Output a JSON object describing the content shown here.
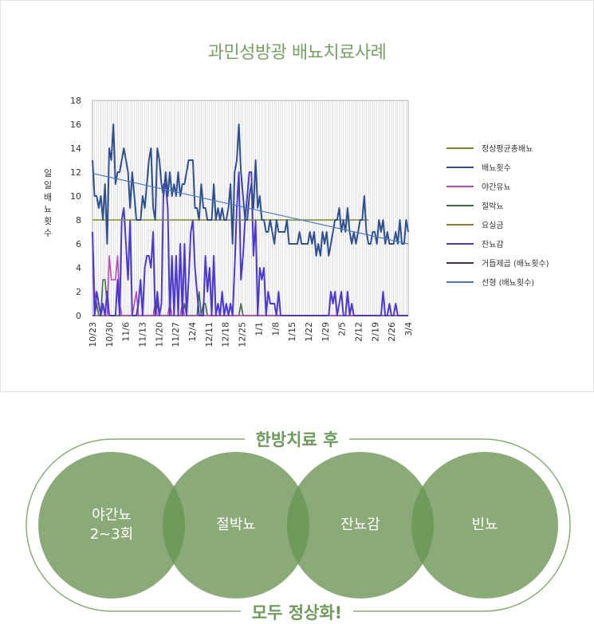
{
  "chart_data": {
    "type": "line",
    "title": "과민성방광 배뇨치료사례",
    "xlabel": "",
    "ylabel": "일 일 배 뇨 횟 수",
    "ylim": [
      0,
      18
    ],
    "y_ticks": [
      0,
      2,
      4,
      6,
      8,
      10,
      12,
      14,
      16,
      18
    ],
    "x_ticks": [
      "10/23",
      "10/30",
      "11/6",
      "11/13",
      "11/20",
      "11/27",
      "12/4",
      "12/11",
      "12/18",
      "12/25",
      "1/1",
      "1/8",
      "1/15",
      "1/22",
      "1/29",
      "2/5",
      "2/12",
      "2/19",
      "2/26",
      "3/4"
    ],
    "grid": "vertical",
    "legend_position": "right",
    "series": [
      {
        "name": "정상평균총배뇨",
        "color": "#7a8b2a",
        "values": [
          8,
          8,
          8,
          8,
          8,
          8,
          8,
          8,
          8,
          8,
          8,
          8,
          8,
          8,
          8,
          8,
          8,
          8,
          8,
          8,
          8,
          8,
          8,
          8,
          8,
          8,
          8,
          8,
          8,
          8,
          8,
          8,
          8,
          8,
          8,
          8,
          8,
          8,
          8,
          8,
          8,
          8,
          8,
          8,
          8,
          8,
          8,
          8,
          8,
          8,
          8,
          8,
          8,
          8,
          8,
          8,
          8,
          8,
          8,
          8,
          8,
          8,
          8,
          8,
          8,
          8,
          8,
          8,
          8,
          8,
          8,
          8,
          8,
          8,
          8,
          8,
          8,
          8,
          8,
          8,
          8,
          8,
          8,
          8,
          8,
          8,
          8,
          8,
          8,
          8,
          8,
          8,
          8,
          8,
          8,
          8,
          8,
          8,
          8,
          8,
          8,
          8,
          8,
          8,
          8,
          8,
          8,
          8,
          8,
          8,
          8,
          8,
          8,
          8,
          8,
          8,
          8,
          8,
          8,
          8,
          8,
          8,
          8,
          8,
          8,
          8,
          8,
          8,
          8,
          8,
          8,
          8,
          8
        ]
      },
      {
        "name": "배뇨횟수",
        "color": "#2e4f8f",
        "values": [
          13,
          10,
          10,
          9,
          10,
          8,
          11,
          6,
          14,
          13,
          16,
          11,
          12,
          12,
          13,
          14,
          13,
          12,
          9,
          12,
          10,
          8,
          8,
          8,
          10,
          9,
          11,
          13,
          14,
          9,
          8,
          14,
          13,
          11,
          10,
          12,
          10,
          12,
          10,
          11,
          10,
          12,
          10,
          11,
          11,
          12,
          13,
          13,
          13,
          9,
          9,
          8,
          11,
          9,
          9,
          8,
          8,
          8,
          11,
          8,
          9,
          8,
          9,
          8,
          8,
          9,
          11,
          6,
          12,
          13,
          16,
          12,
          10,
          8,
          8,
          10,
          11,
          9,
          13,
          9,
          10,
          8,
          8,
          7,
          7,
          8,
          7,
          6,
          8,
          7,
          7,
          7,
          7,
          8,
          6,
          6,
          6,
          6,
          6,
          7,
          6,
          6,
          6,
          6,
          7,
          6,
          7,
          5,
          6,
          5,
          7,
          6,
          7,
          5,
          6,
          7,
          8,
          8,
          9,
          7,
          8,
          7,
          9,
          7,
          6,
          7,
          6,
          7,
          8,
          8,
          10,
          7,
          6,
          6,
          7,
          7,
          6,
          8,
          7,
          8,
          6,
          7,
          6,
          6,
          6,
          7,
          6,
          8,
          6,
          6,
          8,
          7
        ]
      },
      {
        "name": "야간유뇨",
        "color": "#b848b8",
        "values": [
          7,
          2,
          1,
          1,
          0,
          0,
          0,
          0,
          5,
          3,
          3,
          3,
          5,
          1,
          0,
          0,
          0,
          0,
          0,
          0,
          1,
          2,
          0,
          0,
          0,
          0,
          0,
          0,
          0,
          0,
          1,
          0,
          0,
          0,
          0,
          0,
          0,
          1,
          0,
          0,
          0,
          0,
          0,
          1,
          0,
          0,
          0,
          0,
          0,
          0,
          0,
          0,
          0,
          0,
          0,
          0,
          0,
          0,
          0,
          0,
          0,
          0,
          0,
          0,
          0,
          0,
          0,
          0,
          0,
          0,
          0,
          0,
          0,
          0,
          0,
          0,
          0,
          0,
          0,
          0,
          0,
          0,
          0,
          0,
          0,
          0,
          0,
          0,
          0,
          0,
          0,
          0,
          0,
          0,
          0,
          0,
          0,
          0,
          0,
          0,
          0,
          0,
          0,
          0,
          0,
          0,
          0,
          0,
          0,
          0,
          0,
          0,
          0,
          0,
          0,
          0,
          0,
          0,
          0,
          0,
          0,
          0,
          0,
          0,
          0,
          0,
          0,
          0,
          0,
          0,
          0,
          0,
          0,
          0,
          0,
          0,
          0,
          0,
          0,
          0,
          0,
          0,
          0,
          0,
          0,
          0,
          0,
          0,
          0,
          0,
          0,
          0
        ]
      },
      {
        "name": "절박뇨",
        "color": "#3d6b48",
        "values": [
          0,
          0,
          1,
          0,
          0,
          3,
          3,
          1,
          0,
          0,
          0,
          0,
          0,
          0,
          0,
          0,
          0,
          0,
          0,
          0,
          0,
          0,
          0,
          0,
          0,
          0,
          0,
          0,
          0,
          0,
          0,
          1,
          0,
          0,
          0,
          0,
          0,
          0,
          0,
          0,
          0,
          0,
          0,
          0,
          1,
          0,
          0,
          0,
          0,
          0,
          0,
          2,
          0,
          1,
          1,
          0,
          0,
          0,
          0,
          0,
          0,
          0,
          0,
          0,
          0,
          0,
          0,
          0,
          0,
          0,
          0,
          1,
          0,
          0,
          0,
          0,
          0,
          0,
          0,
          0,
          0,
          0,
          0,
          0,
          0,
          0,
          0,
          0,
          0,
          0,
          0,
          0,
          0,
          0,
          0,
          0,
          0,
          0,
          0,
          0,
          0,
          0,
          0,
          0,
          0,
          0,
          0,
          0,
          0,
          0,
          0,
          0,
          0,
          0,
          0,
          0,
          0,
          0,
          0,
          0,
          0,
          0,
          0,
          0,
          0,
          0,
          0,
          0,
          0,
          0,
          0,
          0,
          0,
          0,
          0,
          0,
          0,
          0,
          0,
          0,
          0,
          0,
          0,
          0,
          0,
          0,
          0,
          0,
          0,
          0,
          0,
          0
        ]
      },
      {
        "name": "요실금",
        "color": "#9a7a2c",
        "values": [
          0,
          0,
          0,
          0,
          0,
          0,
          0,
          0,
          0,
          0,
          0,
          0,
          0,
          0,
          0,
          0,
          0,
          0,
          0,
          0,
          0,
          0,
          0,
          0,
          0,
          0,
          0,
          0,
          0,
          0,
          0,
          0,
          0,
          0,
          0,
          0,
          0,
          0,
          0,
          0,
          0,
          0,
          0,
          0,
          0,
          0,
          0,
          0,
          0,
          0,
          0,
          0,
          0,
          0,
          0,
          0,
          0,
          0,
          0,
          0,
          0,
          0,
          0,
          0,
          0,
          0,
          0,
          0,
          0,
          0,
          0,
          0,
          0,
          0,
          0,
          0,
          0,
          0,
          0,
          0,
          0,
          0,
          0,
          0,
          0,
          0,
          0,
          0,
          0,
          0,
          0,
          0,
          0,
          0,
          0,
          0,
          0,
          0,
          0,
          0,
          0,
          0,
          0,
          0,
          0,
          0,
          0,
          0,
          0,
          0,
          0,
          0,
          0,
          0,
          0,
          0,
          0,
          0,
          0,
          0,
          0,
          0,
          0,
          0,
          0,
          0,
          0,
          0,
          0,
          0,
          0,
          0,
          0,
          0,
          0,
          0,
          0,
          0,
          0,
          0,
          0,
          0,
          0,
          0,
          0,
          0,
          0,
          0,
          0,
          0,
          0,
          0
        ]
      },
      {
        "name": "잔뇨감",
        "color": "#4b38d0",
        "values": [
          7,
          0,
          2,
          1,
          0,
          1,
          0,
          2,
          0,
          0,
          0,
          0,
          3,
          0,
          8,
          9,
          6,
          3,
          8,
          0,
          0,
          0,
          1,
          3,
          0,
          4,
          5,
          5,
          4,
          7,
          0,
          2,
          0,
          1,
          11,
          11,
          9,
          0,
          5,
          0,
          5,
          0,
          6,
          0,
          6,
          0,
          3,
          7,
          8,
          4,
          2,
          0,
          0,
          0,
          5,
          2,
          4,
          0,
          5,
          0,
          1,
          0,
          2,
          0,
          1,
          0,
          1,
          0,
          4,
          9,
          12,
          3,
          5,
          8,
          10,
          12,
          12,
          5,
          8,
          0,
          4,
          3,
          4,
          0,
          2,
          1,
          1,
          1,
          0,
          2,
          0,
          0,
          0,
          0,
          0,
          0,
          0,
          0,
          0,
          0,
          0,
          0,
          0,
          0,
          0,
          0,
          0,
          0,
          0,
          0,
          0,
          0,
          0,
          0,
          2,
          1,
          2,
          0,
          1,
          2,
          0,
          0,
          2,
          0,
          1,
          0,
          0,
          0,
          0,
          0,
          0,
          0,
          0,
          0,
          0,
          0,
          0,
          0,
          0,
          2,
          0,
          0,
          1,
          0,
          0,
          1,
          0,
          0,
          0,
          0,
          0,
          0
        ]
      },
      {
        "name": "거듭제곱 (배뇨횟수)",
        "color": "#4a3050",
        "values": []
      },
      {
        "name": "선형 (배뇨횟수)",
        "color": "#4a78c8",
        "trend": [
          11.9,
          6.0
        ]
      }
    ]
  },
  "after": {
    "title": "한방치료 후",
    "footer": "모두 정상화!",
    "circles": [
      {
        "label": "야간뇨\n2~3회"
      },
      {
        "label": "절박뇨"
      },
      {
        "label": "잔뇨감"
      },
      {
        "label": "빈뇨"
      }
    ]
  },
  "colors": {
    "title_green": "#78a067",
    "circle_fill": "#8aab78",
    "circle_overlap": "#6f9a5c"
  }
}
